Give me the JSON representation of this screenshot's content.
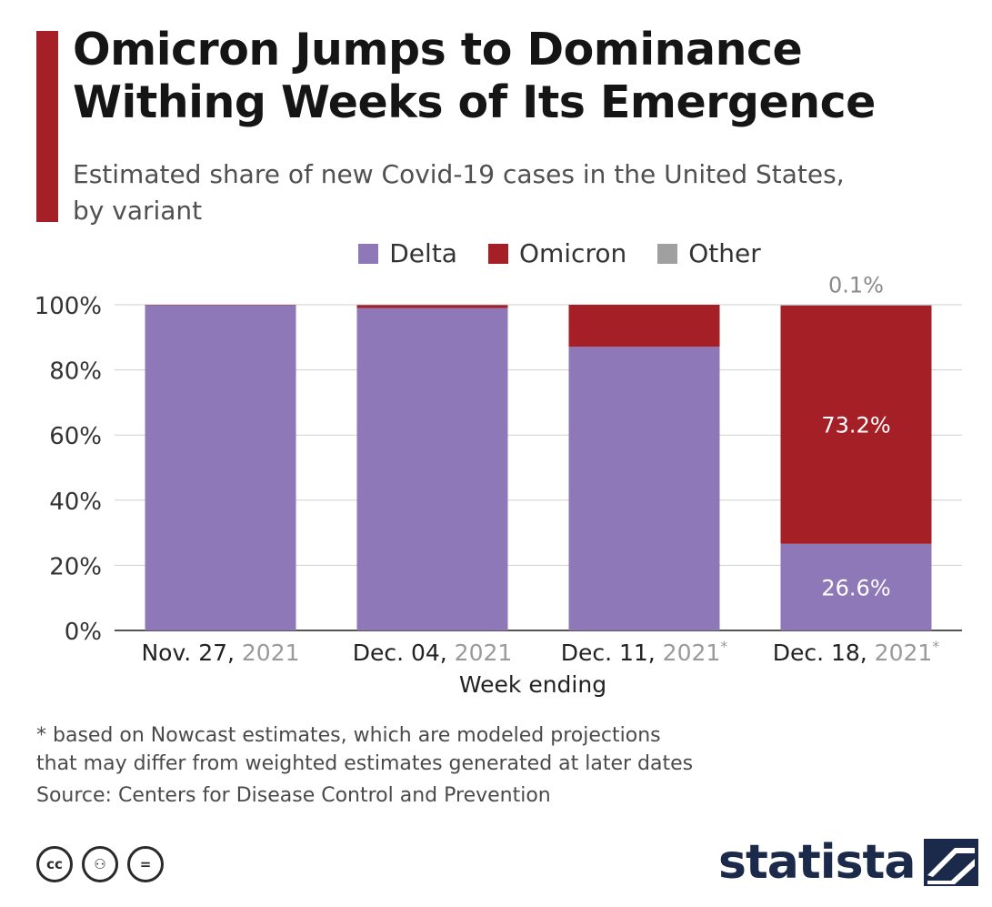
{
  "title": "Omicron Jumps to Dominance\nWithing Weeks of Its Emergence",
  "subtitle": "Estimated share of new Covid-19 cases in the United States,\nby variant",
  "colors": {
    "accent": "#a51f26",
    "delta": "#8e78b8",
    "omicron": "#a51f26",
    "other": "#a0a0a0",
    "brand": "#1b2a4a"
  },
  "chart_data": {
    "type": "bar",
    "stacked": true,
    "xlabel": "Week ending",
    "ylabel": "",
    "ylim": [
      0,
      100
    ],
    "y_ticks": [
      "0%",
      "20%",
      "40%",
      "60%",
      "80%",
      "100%"
    ],
    "y_tick_values": [
      0,
      20,
      40,
      60,
      80,
      100
    ],
    "grid": true,
    "legend_placement": "top-center",
    "categories": [
      {
        "main": "Nov. 27,",
        "year": "2021",
        "mark": ""
      },
      {
        "main": "Dec. 04,",
        "year": "2021",
        "mark": ""
      },
      {
        "main": "Dec. 11,",
        "year": "2021",
        "mark": "*"
      },
      {
        "main": "Dec. 18,",
        "year": "2021",
        "mark": "*"
      }
    ],
    "series": [
      {
        "name": "Delta",
        "color": "#8e78b8",
        "values": [
          99.9,
          99.0,
          87.1,
          26.6
        ]
      },
      {
        "name": "Omicron",
        "color": "#a51f26",
        "values": [
          0.1,
          0.9,
          12.9,
          73.2
        ]
      },
      {
        "name": "Other",
        "color": "#a0a0a0",
        "values": [
          0.0,
          0.1,
          0.0,
          0.1
        ]
      }
    ],
    "data_labels": [
      {
        "category_index": 3,
        "series": "Delta",
        "text": "26.6%",
        "placement": "inside"
      },
      {
        "category_index": 3,
        "series": "Omicron",
        "text": "73.2%",
        "placement": "inside"
      },
      {
        "category_index": 3,
        "series": "Other",
        "text": "0.1%",
        "placement": "above"
      }
    ]
  },
  "footnote": "* based on Nowcast estimates, which are modeled projections\n   that may differ from weighted estimates generated at later dates",
  "source": "Source: Centers for Disease Control and Prevention",
  "license_icons": [
    {
      "name": "cc-icon",
      "glyph": "cc"
    },
    {
      "name": "attribution-icon",
      "glyph": "⚇"
    },
    {
      "name": "no-derivatives-icon",
      "glyph": "="
    }
  ],
  "brand": {
    "name": "statista"
  }
}
